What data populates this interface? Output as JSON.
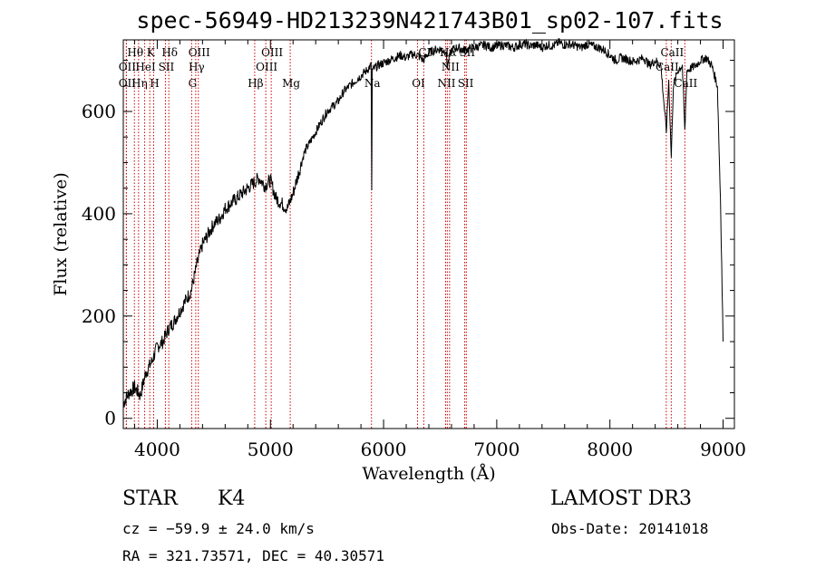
{
  "chart_data": {
    "type": "line",
    "title": "spec-56949-HD213239N421743B01_sp02-107.fits",
    "xlabel": "Wavelength (Å)",
    "ylabel": "Flux (relative)",
    "xlim": [
      3700,
      9100
    ],
    "ylim": [
      -20,
      740
    ],
    "x_ticks": [
      4000,
      5000,
      6000,
      7000,
      8000,
      9000
    ],
    "y_ticks": [
      0,
      200,
      400,
      600
    ],
    "series": [
      {
        "name": "spectrum",
        "x": [
          3700,
          3750,
          3800,
          3850,
          3900,
          3950,
          4000,
          4050,
          4100,
          4150,
          4200,
          4250,
          4300,
          4350,
          4400,
          4450,
          4500,
          4550,
          4600,
          4650,
          4700,
          4750,
          4800,
          4850,
          4900,
          4950,
          5000,
          5050,
          5100,
          5150,
          5200,
          5250,
          5300,
          5350,
          5400,
          5450,
          5500,
          5550,
          5600,
          5650,
          5700,
          5750,
          5800,
          5850,
          5890,
          5895,
          5900,
          5950,
          6000,
          6050,
          6100,
          6150,
          6200,
          6250,
          6300,
          6350,
          6400,
          6450,
          6500,
          6550,
          6563,
          6600,
          6650,
          6700,
          6750,
          6800,
          6850,
          6900,
          6950,
          7000,
          7050,
          7100,
          7150,
          7200,
          7250,
          7300,
          7350,
          7400,
          7450,
          7500,
          7550,
          7600,
          7650,
          7700,
          7750,
          7800,
          7850,
          7900,
          7950,
          8000,
          8050,
          8100,
          8150,
          8200,
          8250,
          8300,
          8350,
          8400,
          8450,
          8498,
          8520,
          8542,
          8560,
          8600,
          8640,
          8662,
          8680,
          8720,
          8760,
          8800,
          8850,
          8900,
          8950,
          8980,
          9000
        ],
        "values": [
          30,
          50,
          60,
          45,
          90,
          110,
          140,
          150,
          175,
          190,
          210,
          230,
          250,
          300,
          340,
          360,
          380,
          390,
          410,
          420,
          430,
          440,
          450,
          460,
          470,
          455,
          465,
          430,
          420,
          410,
          440,
          480,
          520,
          540,
          560,
          580,
          600,
          610,
          620,
          640,
          650,
          660,
          670,
          680,
          690,
          450,
          680,
          690,
          695,
          700,
          705,
          710,
          705,
          712,
          710,
          700,
          715,
          720,
          722,
          718,
          690,
          720,
          725,
          720,
          722,
          725,
          728,
          730,
          725,
          728,
          730,
          728,
          725,
          730,
          732,
          728,
          730,
          725,
          730,
          728,
          735,
          730,
          732,
          728,
          725,
          732,
          728,
          725,
          720,
          710,
          700,
          705,
          702,
          698,
          700,
          705,
          690,
          700,
          690,
          560,
          660,
          510,
          650,
          680,
          690,
          560,
          680,
          685,
          690,
          700,
          705,
          690,
          650,
          400,
          150
        ]
      }
    ],
    "line_markers": [
      {
        "label": "Hθ",
        "x": 3798,
        "row": 0
      },
      {
        "label": "K",
        "x": 3934,
        "row": 0
      },
      {
        "label": "Hδ",
        "x": 4102,
        "row": 0
      },
      {
        "label": "OIII",
        "x": 4363,
        "row": 0
      },
      {
        "label": "OIII",
        "x": 5007,
        "row": 0
      },
      {
        "label": "CI",
        "x": 6355,
        "row": 0
      },
      {
        "label": "Hα",
        "x": 6563,
        "row": 0
      },
      {
        "label": "SII",
        "x": 6731,
        "row": 0
      },
      {
        "label": "CaII",
        "x": 8542,
        "row": 0
      },
      {
        "label": "OII",
        "x": 3727,
        "row": 1
      },
      {
        "label": "HeI",
        "x": 3889,
        "row": 1
      },
      {
        "label": "SII",
        "x": 4072,
        "row": 1
      },
      {
        "label": "Hγ",
        "x": 4340,
        "row": 1
      },
      {
        "label": "OIII",
        "x": 4959,
        "row": 1
      },
      {
        "label": "NII",
        "x": 6583,
        "row": 1
      },
      {
        "label": "CaII",
        "x": 8498,
        "row": 1
      },
      {
        "label": "OII",
        "x": 3727,
        "row": 2
      },
      {
        "label": "Hη",
        "x": 3835,
        "row": 2
      },
      {
        "label": "H",
        "x": 3968,
        "row": 2
      },
      {
        "label": "G",
        "x": 4304,
        "row": 2
      },
      {
        "label": "Hβ",
        "x": 4861,
        "row": 2
      },
      {
        "label": "Mg",
        "x": 5175,
        "row": 2
      },
      {
        "label": "Na",
        "x": 5893,
        "row": 2
      },
      {
        "label": "OI",
        "x": 6300,
        "row": 2
      },
      {
        "label": "NII",
        "x": 6548,
        "row": 2
      },
      {
        "label": "SII",
        "x": 6717,
        "row": 2
      },
      {
        "label": "CaII",
        "x": 8662,
        "row": 2
      }
    ]
  },
  "info": {
    "object_type": "STAR",
    "spectral_class": "K4",
    "survey": "LAMOST DR3",
    "cz": "cz = −59.9 ± 24.0 km/s",
    "obs_date": "Obs-Date: 20141018",
    "coords": "RA = 321.73571, DEC =  40.30571"
  },
  "colors": {
    "line": "#000000",
    "marker": "#cc0000"
  }
}
